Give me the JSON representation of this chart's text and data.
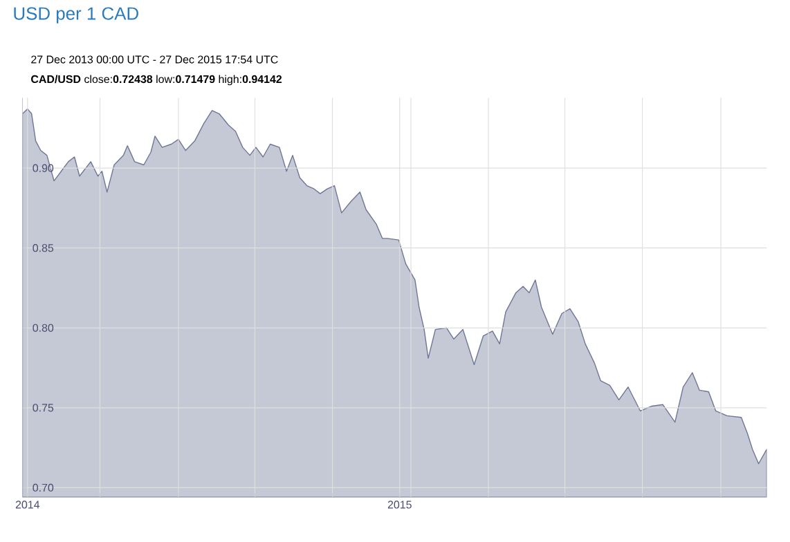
{
  "chart_data": {
    "type": "area",
    "title": "USD per 1 CAD",
    "subtitle": "27 Dec 2013 00:00 UTC - 27 Dec 2015 17:54 UTC",
    "annotations": [
      "**CAD/USD** close:**0.72438** low:**0.71479** high:**0.94142**"
    ],
    "color": "#6f7596",
    "x": [
      "2013-12-27",
      "2014-01-01",
      "2014-01-05",
      "2014-01-09",
      "2014-01-14",
      "2014-01-20",
      "2014-01-27",
      "2014-02-03",
      "2014-02-10",
      "2014-02-16",
      "2014-02-21",
      "2014-03-04",
      "2014-03-11",
      "2014-03-15",
      "2014-03-20",
      "2014-03-27",
      "2014-04-05",
      "2014-04-09",
      "2014-04-16",
      "2014-04-25",
      "2014-05-02",
      "2014-05-06",
      "2014-05-13",
      "2014-05-22",
      "2014-05-29",
      "2014-06-05",
      "2014-06-14",
      "2014-06-23",
      "2014-07-01",
      "2014-07-08",
      "2014-07-17",
      "2014-07-24",
      "2014-07-31",
      "2014-08-07",
      "2014-08-13",
      "2014-08-20",
      "2014-08-27",
      "2014-09-05",
      "2014-09-12",
      "2014-09-18",
      "2014-09-25",
      "2014-10-02",
      "2014-10-09",
      "2014-10-15",
      "2014-10-22",
      "2014-10-29",
      "2014-11-05",
      "2014-11-14",
      "2014-11-23",
      "2014-11-29",
      "2014-12-09",
      "2014-12-15",
      "2014-12-20",
      "2014-12-31",
      "2015-01-07",
      "2015-01-16",
      "2015-01-20",
      "2015-01-25",
      "2015-01-29",
      "2015-02-05",
      "2015-02-16",
      "2015-02-23",
      "2015-03-04",
      "2015-03-15",
      "2015-03-24",
      "2015-04-02",
      "2015-04-09",
      "2015-04-15",
      "2015-04-25",
      "2015-05-02",
      "2015-05-08",
      "2015-05-14",
      "2015-05-20",
      "2015-05-31",
      "2015-06-09",
      "2015-06-17",
      "2015-06-25",
      "2015-07-02",
      "2015-07-11",
      "2015-07-17",
      "2015-07-26",
      "2015-08-04",
      "2015-08-13",
      "2015-08-25",
      "2015-09-05",
      "2015-09-16",
      "2015-09-28",
      "2015-10-06",
      "2015-10-15",
      "2015-10-22",
      "2015-10-31",
      "2015-11-07",
      "2015-11-18",
      "2015-12-02",
      "2015-12-08",
      "2015-12-13",
      "2015-12-19",
      "2015-12-27"
    ],
    "values": [
      0.934,
      0.937,
      0.934,
      0.917,
      0.911,
      0.908,
      0.892,
      0.898,
      0.904,
      0.907,
      0.895,
      0.904,
      0.895,
      0.898,
      0.885,
      0.902,
      0.908,
      0.914,
      0.904,
      0.902,
      0.91,
      0.92,
      0.913,
      0.915,
      0.918,
      0.911,
      0.917,
      0.928,
      0.936,
      0.934,
      0.927,
      0.923,
      0.913,
      0.908,
      0.913,
      0.907,
      0.915,
      0.913,
      0.898,
      0.908,
      0.894,
      0.889,
      0.887,
      0.884,
      0.887,
      0.889,
      0.872,
      0.879,
      0.885,
      0.874,
      0.865,
      0.856,
      0.856,
      0.855,
      0.84,
      0.83,
      0.813,
      0.799,
      0.781,
      0.799,
      0.8,
      0.793,
      0.799,
      0.777,
      0.795,
      0.798,
      0.79,
      0.81,
      0.822,
      0.826,
      0.822,
      0.83,
      0.813,
      0.796,
      0.809,
      0.812,
      0.804,
      0.79,
      0.778,
      0.767,
      0.764,
      0.755,
      0.763,
      0.748,
      0.751,
      0.752,
      0.741,
      0.763,
      0.772,
      0.761,
      0.76,
      0.748,
      0.745,
      0.744,
      0.734,
      0.724,
      0.715,
      0.724
    ],
    "xlim": [
      "2013-12-27",
      "2015-12-27"
    ],
    "ylim": [
      0.694,
      0.944
    ],
    "xticks": [
      {
        "value": "2014-01-01",
        "label": "2014"
      },
      {
        "value": "2014-03-13",
        "label": null
      },
      {
        "value": "2014-05-29",
        "label": null
      },
      {
        "value": "2014-08-12",
        "label": null
      },
      {
        "value": "2014-10-27",
        "label": null
      },
      {
        "value": "2015-01-01",
        "label": "2015"
      },
      {
        "value": "2015-01-12",
        "label": null
      },
      {
        "value": "2015-03-29",
        "label": null
      },
      {
        "value": "2015-06-12",
        "label": null
      },
      {
        "value": "2015-08-27",
        "label": null
      },
      {
        "value": "2015-11-12",
        "label": null
      }
    ],
    "yticks": [
      {
        "value": 0.7,
        "label": "0.70"
      },
      {
        "value": 0.75,
        "label": "0.75"
      },
      {
        "value": 0.8,
        "label": "0.80"
      },
      {
        "value": 0.85,
        "label": "0.85"
      },
      {
        "value": 0.9,
        "label": "0.90"
      }
    ],
    "grid": true
  }
}
